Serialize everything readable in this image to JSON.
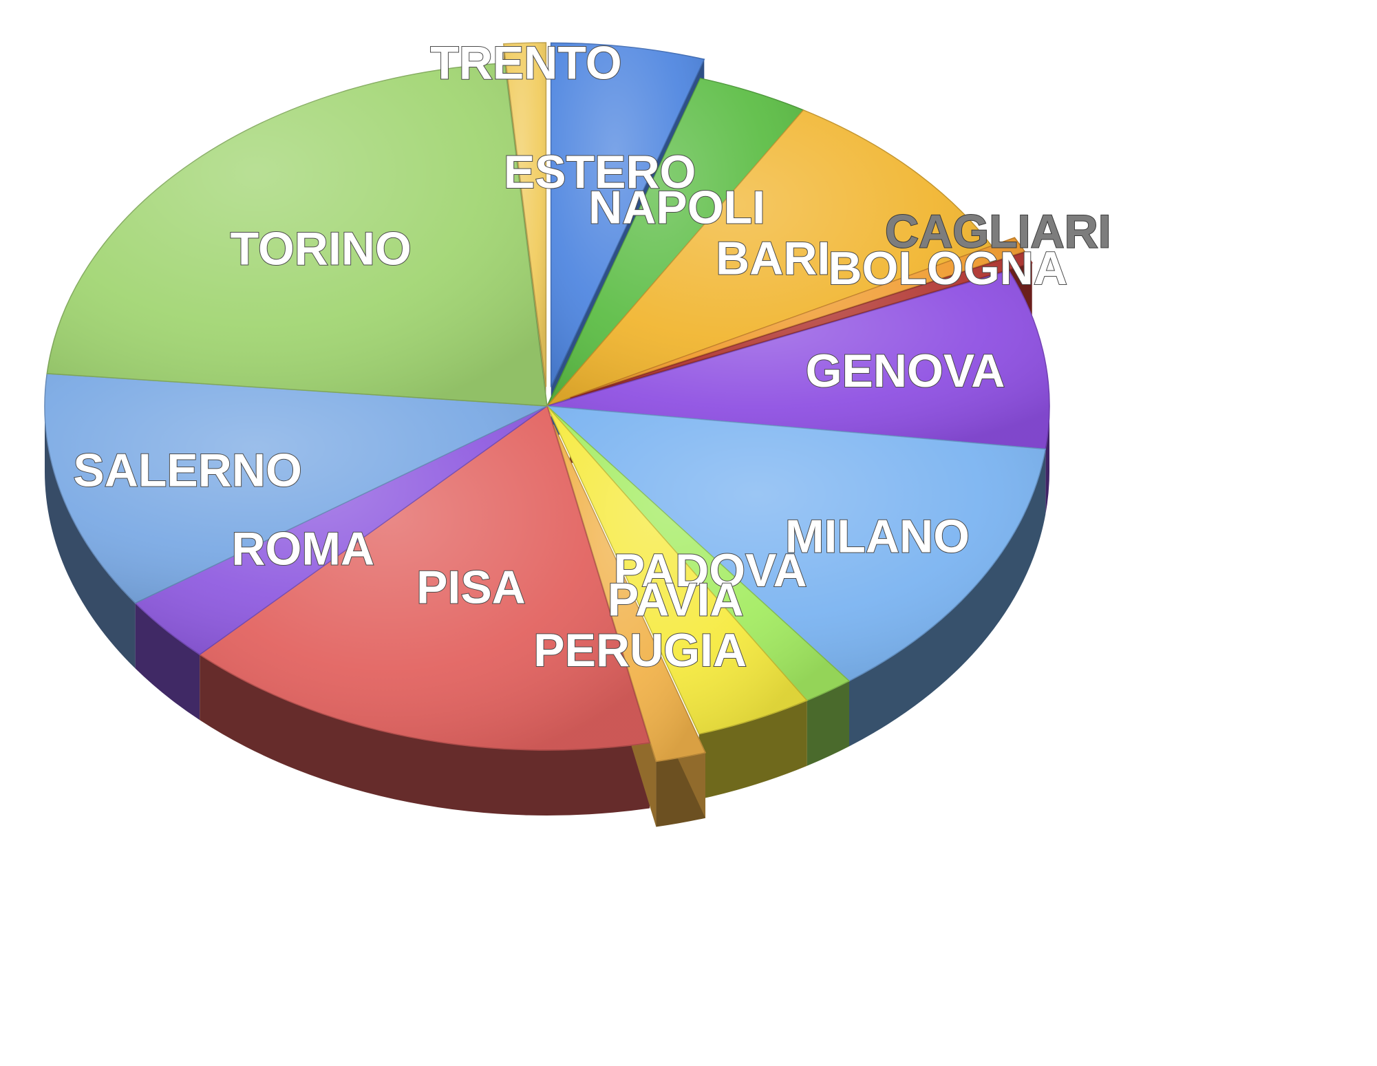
{
  "chart_data": {
    "type": "pie",
    "style": "3d-exploded",
    "slices": [
      {
        "label": "ESTERO",
        "value": 5.5,
        "color": "#4f86e0",
        "exploded": true
      },
      {
        "label": "NAPOLI",
        "value": 4.0,
        "color": "#5cbd45",
        "exploded": false
      },
      {
        "label": "BARI",
        "value": 9.8,
        "color": "#f1b52f",
        "exploded": false
      },
      {
        "label": "BOLOGNA",
        "value": 0.8,
        "color": "#f09a2c",
        "exploded": true
      },
      {
        "label": "CAGLIARI",
        "value": 0.6,
        "color": "#b0332e",
        "exploded": true
      },
      {
        "label": "GENOVA",
        "value": 9.4,
        "color": "#8e4fe2",
        "exploded": false
      },
      {
        "label": "MILANO",
        "value": 14.2,
        "color": "#7ab3f1",
        "exploded": false
      },
      {
        "label": "PADOVA",
        "value": 1.8,
        "color": "#a4ec62",
        "exploded": false
      },
      {
        "label": "PAVIA",
        "value": 4.2,
        "color": "#f6ea3f",
        "exploded": false
      },
      {
        "label": "PERUGIA",
        "value": 1.8,
        "color": "#f1b24a",
        "exploded": true
      },
      {
        "label": "PISA",
        "value": 17.2,
        "color": "#e2625f",
        "exploded": false
      },
      {
        "label": "ROMA",
        "value": 3.5,
        "color": "#8f5be0",
        "exploded": false
      },
      {
        "label": "SALERNO",
        "value": 12.5,
        "color": "#7aa9e4",
        "exploded": false
      },
      {
        "label": "TORINO",
        "value": 24.7,
        "color": "#a1d572",
        "exploded": false
      },
      {
        "label": "TRENTO",
        "value": 1.5,
        "color": "#f1cc5e",
        "exploded": true
      }
    ]
  }
}
